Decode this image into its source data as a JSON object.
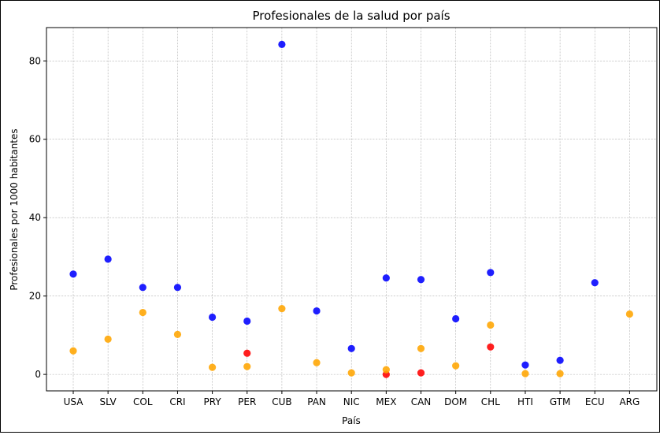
{
  "chart_data": {
    "type": "scatter",
    "title": "Profesionales de la salud por país",
    "xlabel": "País",
    "ylabel": "Profesionales por 1000 habitantes",
    "categories": [
      "USA",
      "SLV",
      "COL",
      "CRI",
      "PRY",
      "PER",
      "CUB",
      "PAN",
      "NIC",
      "MEX",
      "CAN",
      "DOM",
      "CHL",
      "HTI",
      "GTM",
      "ECU",
      "ARG"
    ],
    "ylim": [
      -4.2,
      88.5
    ],
    "yticks": [
      0,
      20,
      40,
      60,
      80
    ],
    "grid": true,
    "legend": "none",
    "series": [
      {
        "color": "#0000ff",
        "values": [
          25.6,
          29.4,
          22.2,
          22.2,
          14.6,
          13.6,
          84.2,
          16.2,
          6.6,
          24.6,
          24.2,
          14.2,
          26.0,
          2.4,
          3.6,
          23.4,
          null
        ]
      },
      {
        "color": "#ff0000",
        "values": [
          null,
          null,
          null,
          null,
          null,
          5.4,
          null,
          null,
          null,
          0.0,
          0.4,
          null,
          7.0,
          null,
          null,
          null,
          null
        ]
      },
      {
        "color": "#ffa500",
        "values": [
          6.0,
          9.0,
          15.8,
          10.2,
          1.8,
          2.0,
          16.8,
          3.0,
          0.4,
          1.2,
          6.6,
          2.2,
          12.6,
          0.2,
          0.2,
          null,
          15.4
        ]
      }
    ]
  }
}
